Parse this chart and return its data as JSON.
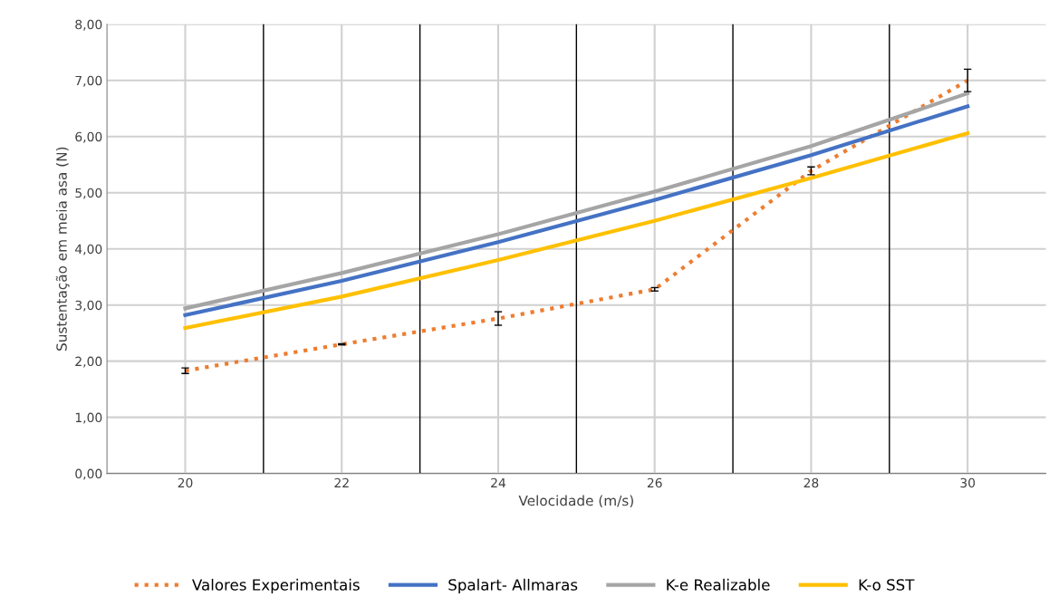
{
  "chart_data": {
    "type": "line",
    "xlabel": "Velocidade (m/s)",
    "ylabel": "Sustentação em meia asa (N)",
    "x": [
      20,
      22,
      24,
      26,
      28,
      30
    ],
    "series": [
      {
        "name": "Valores Experimentais",
        "color": "#ed7d31",
        "line_style": "dotted",
        "values": [
          1.83,
          2.3,
          2.76,
          3.28,
          5.39,
          7.0
        ],
        "errors": [
          0.05,
          0.01,
          0.12,
          0.03,
          0.07,
          0.2
        ]
      },
      {
        "name": "Spalart- Allmaras",
        "color": "#4472c4",
        "values": [
          2.82,
          3.43,
          4.12,
          4.87,
          5.67,
          6.54
        ]
      },
      {
        "name": "K-e Realizable",
        "color": "#a5a5a5",
        "values": [
          2.94,
          3.57,
          4.26,
          5.02,
          5.83,
          6.77
        ]
      },
      {
        "name": "K-o SST",
        "color": "#ffc000",
        "values": [
          2.59,
          3.15,
          3.8,
          4.5,
          5.26,
          6.06
        ]
      }
    ],
    "xlim": [
      19,
      31
    ],
    "xticks": [
      20,
      22,
      24,
      26,
      28,
      30
    ],
    "ylim": [
      0,
      8
    ],
    "yticks": [
      {
        "value": 0,
        "label": "0,00"
      },
      {
        "value": 1,
        "label": "1,00"
      },
      {
        "value": 2,
        "label": "2,00"
      },
      {
        "value": 3,
        "label": "3,00"
      },
      {
        "value": 4,
        "label": "4,00"
      },
      {
        "value": 5,
        "label": "5,00"
      },
      {
        "value": 6,
        "label": "6,00"
      },
      {
        "value": 7,
        "label": "7,00"
      },
      {
        "value": 8,
        "label": "8,00"
      }
    ],
    "ref_lines": [
      {
        "axis": "x",
        "value": 21,
        "color": "#000000"
      },
      {
        "axis": "x",
        "value": 23,
        "color": "#000000"
      },
      {
        "axis": "x",
        "value": 25,
        "color": "#000000"
      },
      {
        "axis": "x",
        "value": 27,
        "color": "#000000"
      },
      {
        "axis": "x",
        "value": 29,
        "color": "#000000"
      }
    ],
    "grid": true,
    "legend": "bottom",
    "marker": "none"
  }
}
